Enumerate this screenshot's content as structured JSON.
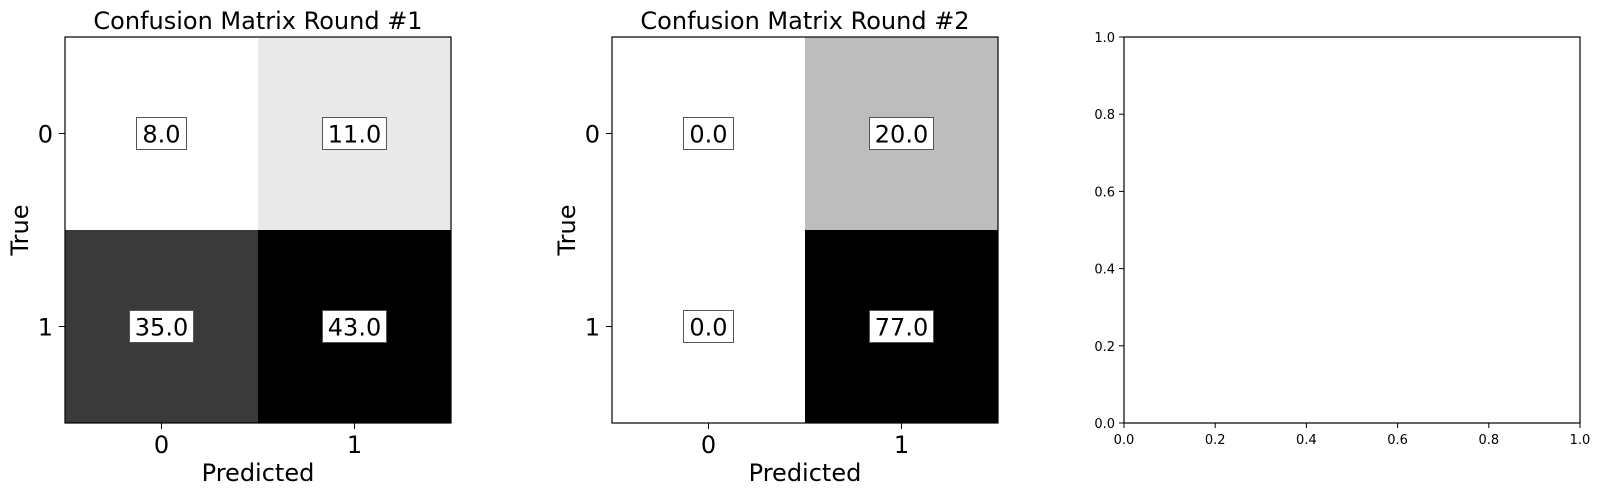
{
  "chart_data": [
    {
      "type": "heatmap",
      "title": "Confusion Matrix Round #1",
      "xlabel": "Predicted",
      "ylabel": "True",
      "x_categories": [
        "0",
        "1"
      ],
      "y_categories": [
        "0",
        "1"
      ],
      "values": [
        [
          8.0,
          11.0
        ],
        [
          35.0,
          43.0
        ]
      ],
      "value_labels": [
        [
          "8.0",
          "11.0"
        ],
        [
          "35.0",
          "43.0"
        ]
      ],
      "colormap": "Greys"
    },
    {
      "type": "heatmap",
      "title": "Confusion Matrix Round #2",
      "xlabel": "Predicted",
      "ylabel": "True",
      "x_categories": [
        "0",
        "1"
      ],
      "y_categories": [
        "0",
        "1"
      ],
      "values": [
        [
          0.0,
          20.0
        ],
        [
          0.0,
          77.0
        ]
      ],
      "value_labels": [
        [
          "0.0",
          "20.0"
        ],
        [
          "0.0",
          "77.0"
        ]
      ],
      "colormap": "Greys"
    },
    {
      "type": "scatter",
      "title": "",
      "xlabel": "",
      "ylabel": "",
      "xlim": [
        0.0,
        1.0
      ],
      "ylim": [
        0.0,
        1.0
      ],
      "x_ticks": [
        "0.0",
        "0.2",
        "0.4",
        "0.6",
        "0.8",
        "1.0"
      ],
      "y_ticks": [
        "0.0",
        "0.2",
        "0.4",
        "0.6",
        "0.8",
        "1.0"
      ],
      "series": []
    }
  ]
}
